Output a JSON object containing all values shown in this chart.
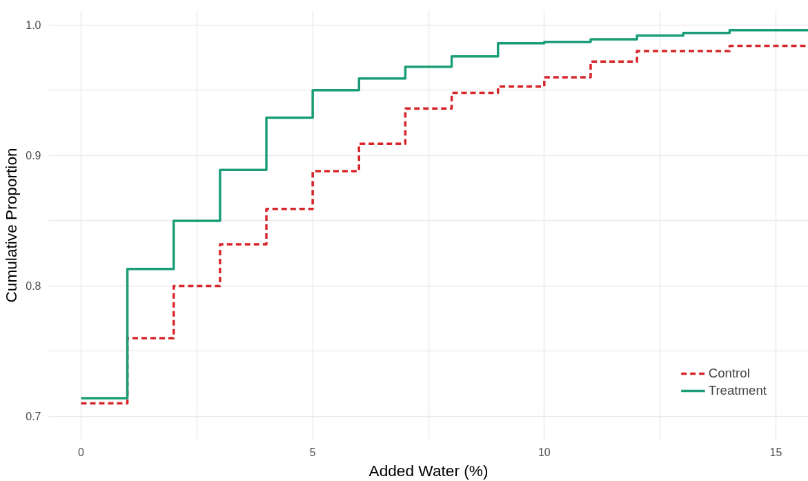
{
  "chart_data": {
    "type": "step",
    "xlabel": "Added Water (%)",
    "ylabel": "Cumulative Proportion",
    "x": [
      0,
      1,
      2,
      3,
      4,
      5,
      6,
      7,
      8,
      9,
      10,
      11,
      12,
      13,
      14,
      15.7
    ],
    "series": [
      {
        "name": "Control",
        "color": "#d7262b",
        "line_style": "dashed",
        "values": [
          0.71,
          0.76,
          0.8,
          0.832,
          0.859,
          0.888,
          0.909,
          0.936,
          0.948,
          0.953,
          0.96,
          0.972,
          0.98,
          0.98,
          0.984,
          0.984
        ]
      },
      {
        "name": "Treatment",
        "color": "#1b9e77",
        "line_style": "solid",
        "values": [
          0.714,
          0.813,
          0.85,
          0.889,
          0.929,
          0.95,
          0.959,
          0.968,
          0.976,
          0.986,
          0.987,
          0.989,
          0.992,
          0.994,
          0.996,
          0.996
        ]
      }
    ],
    "xlim": [
      -0.7,
      15.7
    ],
    "ylim": [
      0.682,
      1.011
    ],
    "xticks": [
      0,
      {
        "value": 2.5,
        "label": null
      },
      5,
      {
        "value": 7.5,
        "label": null
      },
      10,
      {
        "value": 12.5,
        "label": null
      },
      15
    ],
    "yticks": [
      {
        "value": 0.7,
        "label": "0.7"
      },
      {
        "value": 0.75,
        "label": null
      },
      {
        "value": 0.8,
        "label": "0.8"
      },
      {
        "value": 0.85,
        "label": null
      },
      {
        "value": 0.9,
        "label": "0.9"
      },
      {
        "value": 0.95,
        "label": null
      },
      {
        "value": 1.0,
        "label": "1.0"
      }
    ],
    "grid": true,
    "legend": "bottom right",
    "marker": "none"
  }
}
